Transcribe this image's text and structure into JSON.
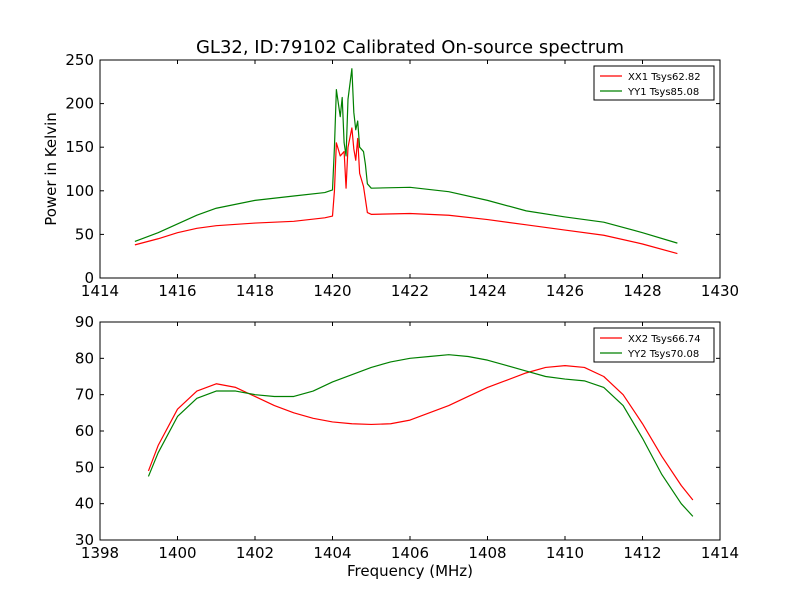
{
  "title": "GL32, ID:79102 Calibrated On-source spectrum",
  "colors": {
    "red": "#ff0000",
    "green": "#008000"
  },
  "chart_data": [
    {
      "type": "line",
      "xlabel": "",
      "ylabel": "Power in Kelvin",
      "xlim": [
        1414,
        1430
      ],
      "ylim": [
        0,
        250
      ],
      "xticks": [
        1414,
        1416,
        1418,
        1420,
        1422,
        1424,
        1426,
        1428,
        1430
      ],
      "yticks": [
        0,
        50,
        100,
        150,
        200,
        250
      ],
      "legend_position": "top-right",
      "series": [
        {
          "name": "XX1 Tsys62.82",
          "color": "#ff0000",
          "x": [
            1414.9,
            1415.5,
            1416.0,
            1416.5,
            1417.0,
            1418.0,
            1419.0,
            1419.8,
            1420.0,
            1420.05,
            1420.1,
            1420.2,
            1420.3,
            1420.35,
            1420.4,
            1420.5,
            1420.55,
            1420.6,
            1420.65,
            1420.7,
            1420.8,
            1420.85,
            1420.9,
            1421.0,
            1422.0,
            1423.0,
            1424.0,
            1425.0,
            1426.0,
            1427.0,
            1428.0,
            1428.9
          ],
          "y": [
            38,
            45,
            52,
            57,
            60,
            63,
            65,
            69,
            71,
            100,
            155,
            140,
            145,
            103,
            150,
            172,
            148,
            135,
            160,
            120,
            105,
            90,
            75,
            73,
            74,
            72,
            67,
            61,
            55,
            49,
            39,
            28
          ]
        },
        {
          "name": "YY1 Tsys85.08",
          "color": "#008000",
          "x": [
            1414.9,
            1415.5,
            1416.0,
            1416.5,
            1417.0,
            1418.0,
            1419.0,
            1419.8,
            1420.0,
            1420.05,
            1420.1,
            1420.2,
            1420.25,
            1420.3,
            1420.35,
            1420.4,
            1420.5,
            1420.55,
            1420.6,
            1420.65,
            1420.7,
            1420.8,
            1420.85,
            1420.9,
            1421.0,
            1422.0,
            1423.0,
            1424.0,
            1425.0,
            1426.0,
            1427.0,
            1428.0,
            1428.9
          ],
          "y": [
            42,
            52,
            62,
            72,
            80,
            89,
            94,
            98,
            101,
            150,
            216,
            185,
            207,
            155,
            140,
            205,
            240,
            190,
            170,
            180,
            150,
            145,
            130,
            108,
            103,
            104,
            99,
            89,
            77,
            70,
            64,
            52,
            40
          ]
        }
      ]
    },
    {
      "type": "line",
      "xlabel": "Frequency (MHz)",
      "ylabel": "",
      "xlim": [
        1398,
        1414
      ],
      "ylim": [
        30,
        90
      ],
      "xticks": [
        1398,
        1400,
        1402,
        1404,
        1406,
        1408,
        1410,
        1412,
        1414
      ],
      "yticks": [
        30,
        40,
        50,
        60,
        70,
        80,
        90
      ],
      "legend_position": "top-right",
      "series": [
        {
          "name": "XX2 Tsys66.74",
          "color": "#ff0000",
          "x": [
            1399.25,
            1399.5,
            1400.0,
            1400.5,
            1401.0,
            1401.5,
            1402.0,
            1402.5,
            1403.0,
            1403.5,
            1404.0,
            1404.5,
            1405.0,
            1405.5,
            1406.0,
            1406.5,
            1407.0,
            1407.5,
            1408.0,
            1408.5,
            1409.0,
            1409.5,
            1410.0,
            1410.5,
            1411.0,
            1411.5,
            1412.0,
            1412.5,
            1413.0,
            1413.3
          ],
          "y": [
            49,
            56,
            66,
            71,
            73,
            72,
            69.5,
            67,
            65,
            63.5,
            62.5,
            62,
            61.8,
            62,
            63,
            65,
            67,
            69.5,
            72,
            74,
            76,
            77.5,
            78,
            77.5,
            75,
            70,
            62,
            53,
            45,
            41
          ]
        },
        {
          "name": "YY2 Tsys70.08",
          "color": "#008000",
          "x": [
            1399.25,
            1399.5,
            1400.0,
            1400.5,
            1401.0,
            1401.5,
            1402.0,
            1402.5,
            1403.0,
            1403.5,
            1404.0,
            1404.5,
            1405.0,
            1405.5,
            1406.0,
            1406.5,
            1407.0,
            1407.5,
            1408.0,
            1408.5,
            1409.0,
            1409.5,
            1410.0,
            1410.5,
            1411.0,
            1411.5,
            1412.0,
            1412.5,
            1413.0,
            1413.3
          ],
          "y": [
            47.5,
            54,
            64,
            69,
            71,
            71,
            70,
            69.5,
            69.5,
            71,
            73.5,
            75.5,
            77.5,
            79,
            80,
            80.5,
            81,
            80.5,
            79.5,
            78,
            76.5,
            75,
            74.3,
            73.8,
            72,
            67,
            58,
            48,
            40,
            36.5
          ]
        }
      ]
    }
  ]
}
